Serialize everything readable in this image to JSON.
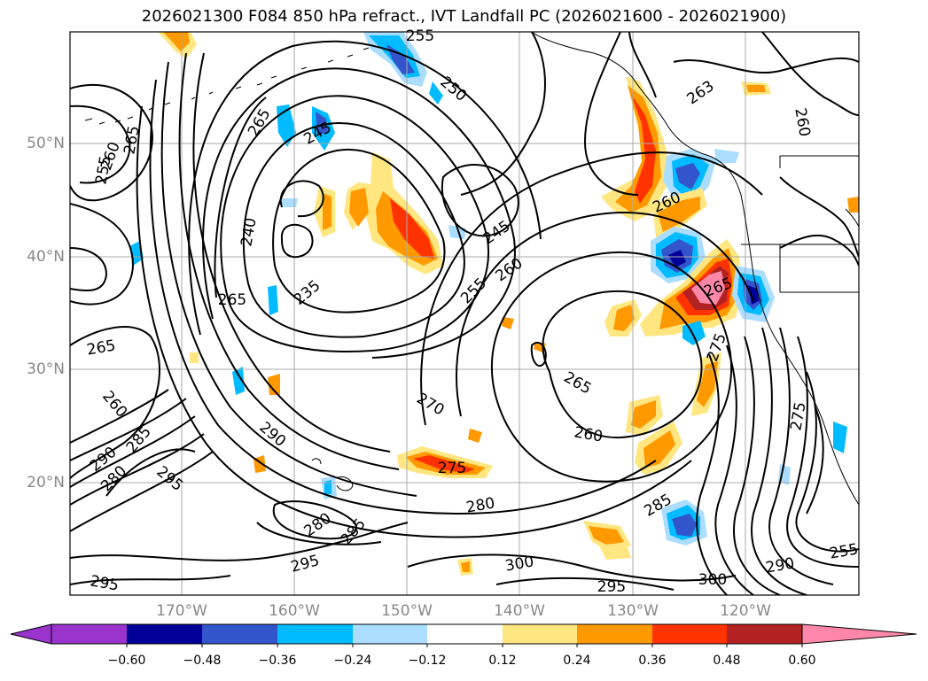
{
  "title": "2026021300 F084 850 hPa refract., IVT Landfall PC (2026021600 - 2026021900)",
  "lat_labels": [
    "50°N",
    "40°N",
    "30°N",
    "20°N"
  ],
  "lon_labels": [
    "170°W",
    "160°W",
    "150°W",
    "140°W",
    "130°W",
    "120°W"
  ],
  "colorbar": {
    "ticks": [
      "−0.60",
      "−0.48",
      "−0.36",
      "−0.24",
      "−0.12",
      "0.12",
      "0.24",
      "0.36",
      "0.48",
      "0.60"
    ],
    "colors": [
      "#9933cc",
      "#000099",
      "#3355cc",
      "#00bbff",
      "#aaddff",
      "#ffffff",
      "#ffe680",
      "#ff9900",
      "#ff3300",
      "#b22222",
      "#ff88aa",
      "#ff88aa"
    ]
  },
  "contour_labels": [
    {
      "text": "255"
    },
    {
      "text": "250"
    },
    {
      "text": "263"
    },
    {
      "text": "260"
    },
    {
      "text": "265"
    },
    {
      "text": "245"
    },
    {
      "text": "255"
    },
    {
      "text": "260"
    },
    {
      "text": "265"
    },
    {
      "text": "240"
    },
    {
      "text": "245"
    },
    {
      "text": "260"
    },
    {
      "text": "235"
    },
    {
      "text": "255"
    },
    {
      "text": "260"
    },
    {
      "text": "265"
    },
    {
      "text": "265"
    },
    {
      "text": "265"
    },
    {
      "text": "275"
    },
    {
      "text": "265"
    },
    {
      "text": "260"
    },
    {
      "text": "270"
    },
    {
      "text": "285"
    },
    {
      "text": "290"
    },
    {
      "text": "260"
    },
    {
      "text": "290"
    },
    {
      "text": "280"
    },
    {
      "text": "295"
    },
    {
      "text": "275"
    },
    {
      "text": "280"
    },
    {
      "text": "285"
    },
    {
      "text": "280"
    },
    {
      "text": "285"
    },
    {
      "text": "295"
    },
    {
      "text": "300"
    },
    {
      "text": "295"
    },
    {
      "text": "300"
    },
    {
      "text": "290"
    },
    {
      "text": "295"
    },
    {
      "text": "255"
    },
    {
      "text": "275"
    }
  ]
}
